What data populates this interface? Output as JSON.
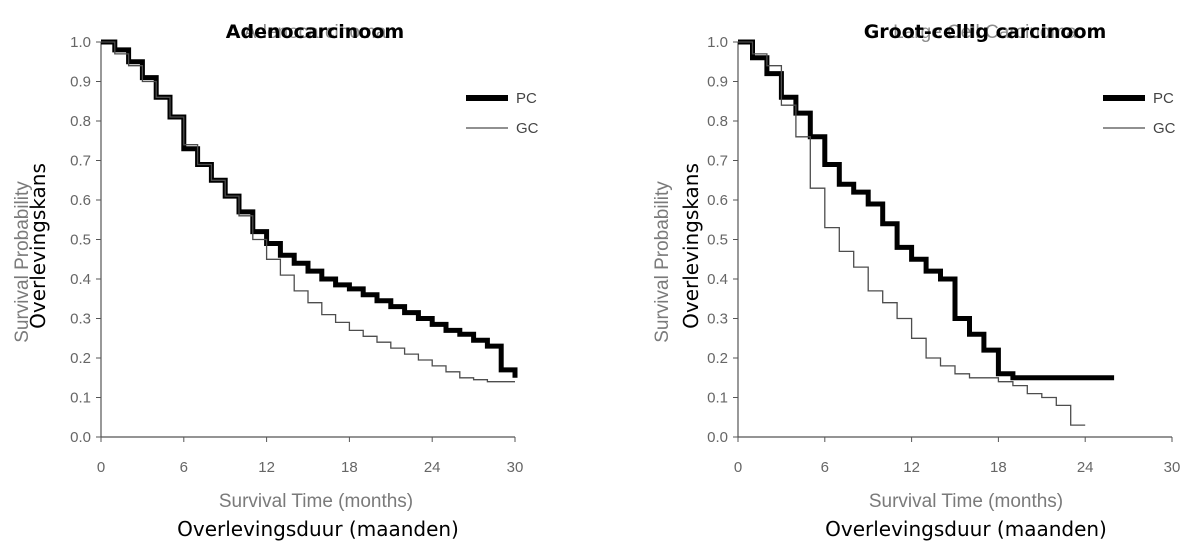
{
  "chart_data": [
    {
      "type": "line",
      "title": "Adenocarcinoma",
      "title_overlay": "Adenocarcinoom",
      "xlabel": "Survival Time (months)",
      "xlabel_overlay": "Overlevingsduur (maanden)",
      "ylabel": "Survival Probability",
      "ylabel_overlay": "Overlevingskans",
      "xlim": [
        0,
        30
      ],
      "ylim": [
        0,
        1
      ],
      "x_ticks": [
        "0",
        "6",
        "12",
        "18",
        "24",
        "30"
      ],
      "y_ticks": [
        "0.0",
        "0.1",
        "0.2",
        "0.3",
        "0.4",
        "0.5",
        "0.6",
        "0.7",
        "0.8",
        "0.9",
        "1.0"
      ],
      "grid": false,
      "legend_position": "top-right",
      "series": [
        {
          "name": "PC",
          "color": "#000000",
          "x": [
            0,
            1,
            2,
            3,
            4,
            5,
            6,
            7,
            8,
            9,
            10,
            11,
            12,
            13,
            14,
            15,
            16,
            17,
            18,
            19,
            20,
            21,
            22,
            23,
            24,
            25,
            26,
            27,
            28,
            29,
            30
          ],
          "y": [
            1.0,
            0.98,
            0.95,
            0.91,
            0.86,
            0.81,
            0.73,
            0.69,
            0.65,
            0.61,
            0.57,
            0.52,
            0.49,
            0.46,
            0.44,
            0.42,
            0.4,
            0.385,
            0.375,
            0.36,
            0.345,
            0.33,
            0.315,
            0.3,
            0.285,
            0.27,
            0.26,
            0.245,
            0.23,
            0.17,
            0.15
          ]
        },
        {
          "name": "GC",
          "color": "#4d4d4d",
          "x": [
            0,
            1,
            2,
            3,
            4,
            5,
            6,
            7,
            8,
            9,
            10,
            11,
            12,
            13,
            14,
            15,
            16,
            17,
            18,
            19,
            20,
            21,
            22,
            23,
            24,
            25,
            26,
            27,
            28,
            29,
            30
          ],
          "y": [
            1.0,
            0.97,
            0.94,
            0.9,
            0.86,
            0.81,
            0.74,
            0.69,
            0.65,
            0.61,
            0.56,
            0.5,
            0.45,
            0.41,
            0.37,
            0.34,
            0.31,
            0.29,
            0.27,
            0.255,
            0.24,
            0.225,
            0.21,
            0.195,
            0.18,
            0.165,
            0.15,
            0.145,
            0.14,
            0.14,
            0.14
          ]
        }
      ]
    },
    {
      "type": "line",
      "title": "Large Cell Carcinoma",
      "title_overlay": "Groot-cellig carcinoom",
      "xlabel": "Survival Time (months)",
      "xlabel_overlay": "Overlevingsduur (maanden)",
      "ylabel": "Survival Probability",
      "ylabel_overlay": "Overlevingskans",
      "xlim": [
        0,
        30
      ],
      "ylim": [
        0,
        1
      ],
      "x_ticks": [
        "0",
        "6",
        "12",
        "18",
        "24",
        "30"
      ],
      "y_ticks": [
        "0.0",
        "0.1",
        "0.2",
        "0.3",
        "0.4",
        "0.5",
        "0.6",
        "0.7",
        "0.8",
        "0.9",
        "1.0"
      ],
      "grid": false,
      "legend_position": "top-right",
      "series": [
        {
          "name": "PC",
          "color": "#000000",
          "x": [
            0,
            1,
            2,
            3,
            4,
            5,
            6,
            7,
            8,
            9,
            10,
            11,
            12,
            13,
            14,
            15,
            16,
            17,
            18,
            19,
            20,
            21,
            22,
            23,
            24,
            25,
            26
          ],
          "y": [
            1.0,
            0.96,
            0.92,
            0.86,
            0.82,
            0.76,
            0.69,
            0.64,
            0.62,
            0.59,
            0.54,
            0.48,
            0.45,
            0.42,
            0.4,
            0.3,
            0.26,
            0.22,
            0.16,
            0.15,
            0.15,
            0.15,
            0.15,
            0.15,
            0.15,
            0.15,
            0.15
          ]
        },
        {
          "name": "GC",
          "color": "#4d4d4d",
          "x": [
            0,
            1,
            2,
            3,
            4,
            5,
            6,
            7,
            8,
            9,
            10,
            11,
            12,
            13,
            14,
            15,
            16,
            17,
            18,
            19,
            20,
            21,
            22,
            23,
            24
          ],
          "y": [
            1.0,
            0.97,
            0.94,
            0.84,
            0.76,
            0.63,
            0.53,
            0.47,
            0.43,
            0.37,
            0.34,
            0.3,
            0.25,
            0.2,
            0.18,
            0.16,
            0.15,
            0.15,
            0.14,
            0.13,
            0.11,
            0.1,
            0.08,
            0.03,
            0.03
          ]
        }
      ]
    }
  ]
}
